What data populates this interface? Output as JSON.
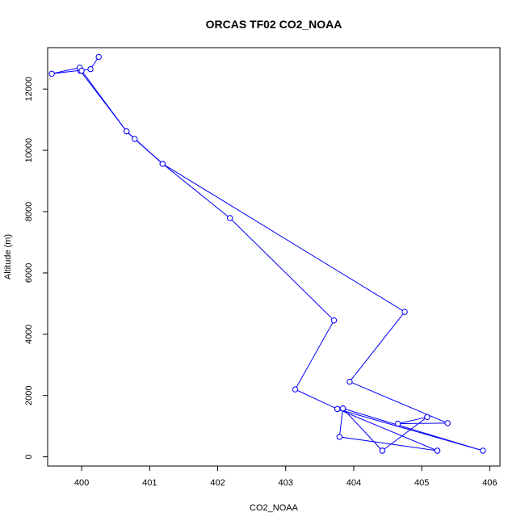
{
  "chart_data": {
    "type": "line",
    "title": "ORCAS TF02 CO2_NOAA",
    "xlabel": "CO2_NOAA",
    "ylabel": "Altitude (m)",
    "xlim": [
      399.5,
      406.15
    ],
    "ylim": [
      -300,
      13350
    ],
    "xticks": [
      400,
      401,
      402,
      403,
      404,
      405,
      406
    ],
    "yticks": [
      0,
      2000,
      4000,
      6000,
      8000,
      10000,
      12000
    ],
    "grid": false,
    "series": [
      {
        "color": "#0000ff",
        "marker": "open-circle",
        "points": [
          {
            "x": 404.42,
            "y": 200
          },
          {
            "x": 405.08,
            "y": 1300
          },
          {
            "x": 404.65,
            "y": 1080
          },
          {
            "x": 405.38,
            "y": 1100
          },
          {
            "x": 403.94,
            "y": 2450
          },
          {
            "x": 404.75,
            "y": 4730
          },
          {
            "x": 401.19,
            "y": 9560
          },
          {
            "x": 400.78,
            "y": 10370
          },
          {
            "x": 400.66,
            "y": 10620
          },
          {
            "x": 399.98,
            "y": 12600
          },
          {
            "x": 399.97,
            "y": 12700
          },
          {
            "x": 399.56,
            "y": 12500
          },
          {
            "x": 400.13,
            "y": 12650
          },
          {
            "x": 400.25,
            "y": 13050
          }
        ]
      },
      {
        "color": "#0000ff",
        "marker": "open-circle",
        "points": [
          {
            "x": 400.0,
            "y": 12600
          },
          {
            "x": 400.66,
            "y": 10620
          },
          {
            "x": 401.19,
            "y": 9560
          },
          {
            "x": 402.18,
            "y": 7790
          },
          {
            "x": 403.71,
            "y": 4450
          },
          {
            "x": 403.14,
            "y": 2200
          },
          {
            "x": 403.76,
            "y": 1560
          },
          {
            "x": 405.9,
            "y": 200
          },
          {
            "x": 403.84,
            "y": 1580
          },
          {
            "x": 404.42,
            "y": 200
          }
        ]
      },
      {
        "color": "#0000ff",
        "marker": "open-circle",
        "points": [
          {
            "x": 403.84,
            "y": 1580
          },
          {
            "x": 403.79,
            "y": 650
          },
          {
            "x": 405.23,
            "y": 200
          }
        ]
      },
      {
        "color": "#0000ff",
        "marker": "open-circle",
        "points": [
          {
            "x": 403.76,
            "y": 1560
          },
          {
            "x": 405.23,
            "y": 200
          }
        ]
      }
    ]
  }
}
